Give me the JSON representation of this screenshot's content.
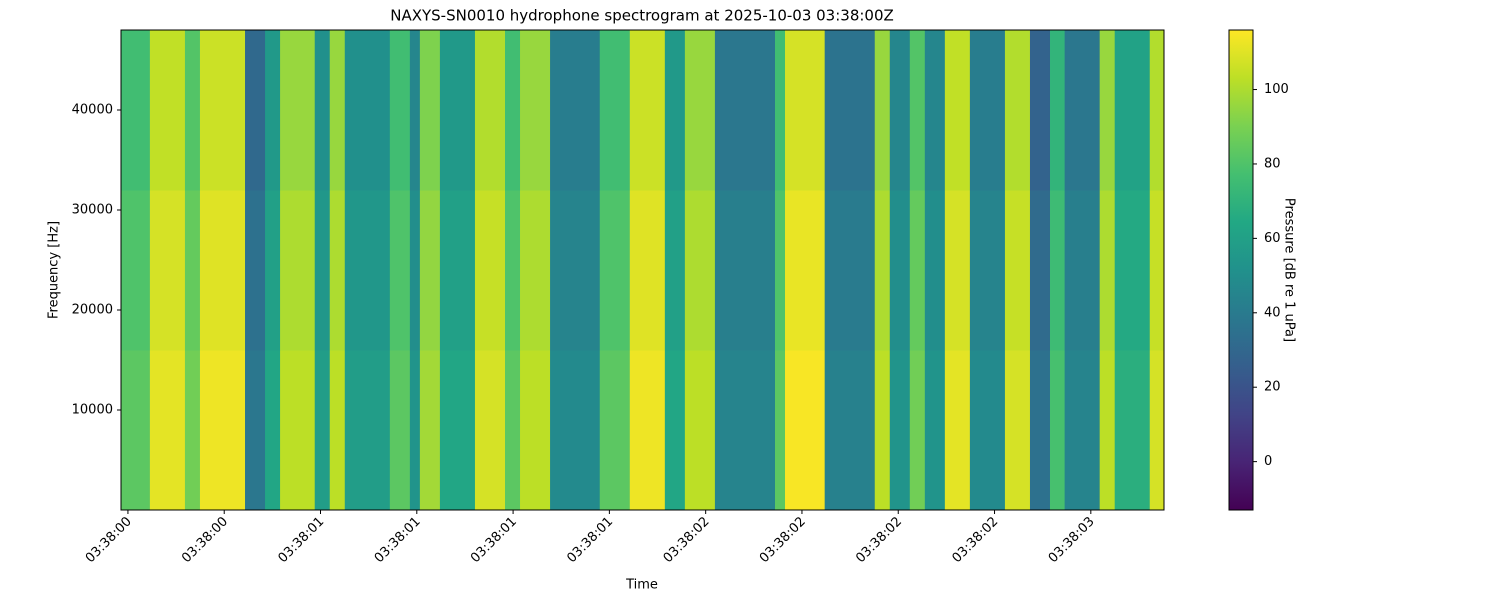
{
  "chart_data": {
    "type": "heatmap",
    "title": "NAXYS-SN0010 hydrophone spectrogram at 2025-10-03 03:38:00Z",
    "x_label": "Time",
    "y_label": "Frequency [Hz]",
    "colorbar_label": "Pressure [dB re 1 uPa]",
    "colormap": "viridis",
    "x_edges": [
      0.482,
      0.557,
      0.648,
      0.687,
      0.804,
      0.856,
      0.895,
      0.985,
      1.024,
      1.063,
      1.18,
      1.232,
      1.258,
      1.31,
      1.401,
      1.479,
      1.518,
      1.596,
      1.725,
      1.803,
      1.894,
      1.946,
      2.024,
      2.18,
      2.206,
      2.309,
      2.439,
      2.478,
      2.53,
      2.569,
      2.621,
      2.686,
      2.777,
      2.842,
      2.894,
      2.932,
      3.023,
      3.062,
      3.153,
      3.19
    ],
    "y_edges": [
      0,
      16000,
      32000,
      48000
    ],
    "values": [
      [
        83,
        111,
        88,
        113,
        38,
        63,
        103,
        58,
        103,
        58,
        83,
        53,
        98,
        63,
        108,
        83,
        103,
        48,
        83,
        113,
        63,
        103,
        45,
        83,
        115,
        43,
        103,
        53,
        88,
        53,
        111,
        48,
        108,
        35,
        78,
        45,
        103,
        68,
        108
      ],
      [
        80,
        108,
        85,
        110,
        35,
        60,
        100,
        55,
        100,
        55,
        80,
        50,
        95,
        60,
        105,
        80,
        100,
        45,
        80,
        110,
        60,
        100,
        42,
        80,
        112,
        40,
        100,
        50,
        85,
        50,
        108,
        45,
        105,
        32,
        75,
        42,
        100,
        65,
        105
      ],
      [
        76,
        104,
        81,
        106,
        31,
        56,
        96,
        51,
        96,
        51,
        76,
        46,
        91,
        56,
        101,
        76,
        96,
        41,
        76,
        106,
        56,
        96,
        38,
        76,
        108,
        36,
        96,
        46,
        81,
        46,
        104,
        41,
        101,
        28,
        71,
        38,
        96,
        61,
        101
      ]
    ],
    "xlim": [
      0.482,
      3.19
    ],
    "ylim": [
      0,
      48000
    ],
    "clim": [
      -13,
      116
    ],
    "xticks": [
      {
        "value": 0.5,
        "label": "03:38:00"
      },
      {
        "value": 0.75,
        "label": "03:38:00"
      },
      {
        "value": 1.0,
        "label": "03:38:01"
      },
      {
        "value": 1.25,
        "label": "03:38:01"
      },
      {
        "value": 1.5,
        "label": "03:38:01"
      },
      {
        "value": 1.75,
        "label": "03:38:01"
      },
      {
        "value": 2.0,
        "label": "03:38:02"
      },
      {
        "value": 2.25,
        "label": "03:38:02"
      },
      {
        "value": 2.5,
        "label": "03:38:02"
      },
      {
        "value": 2.75,
        "label": "03:38:02"
      },
      {
        "value": 3.0,
        "label": "03:38:03"
      }
    ],
    "yticks": [
      10000,
      20000,
      30000,
      40000
    ],
    "cticks": [
      0,
      20,
      40,
      60,
      80,
      100
    ]
  }
}
